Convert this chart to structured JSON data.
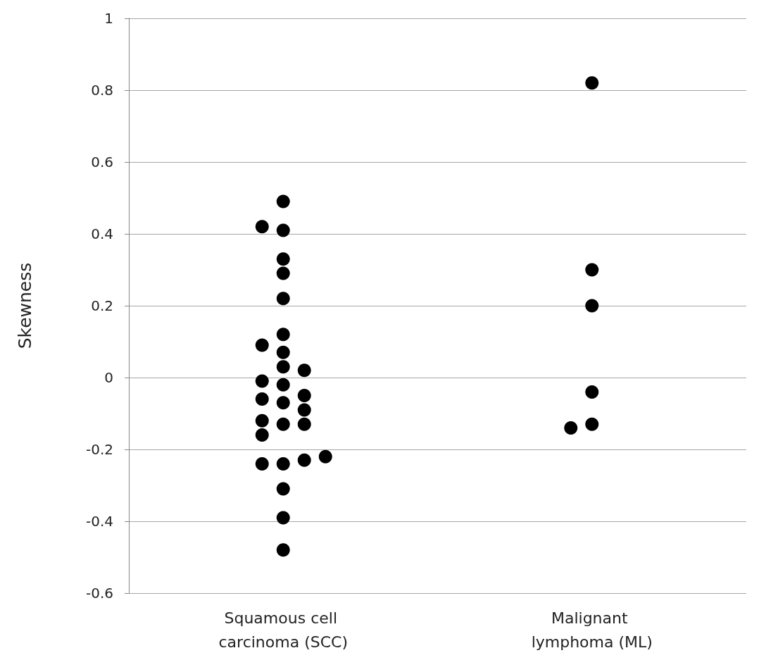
{
  "chart_data": {
    "type": "scatter",
    "ylabel": "Skewness",
    "categories": [
      "Squamous cell carcinoma (SCC)",
      "Malignant lymphoma (ML)"
    ],
    "ylim": [
      -0.6,
      1
    ],
    "yticks": [
      -0.6,
      -0.4,
      -0.2,
      0,
      0.2,
      0.4,
      0.6,
      0.8,
      1
    ],
    "grid": "y",
    "marker": "circle",
    "series": [
      {
        "color": "#000000",
        "x": [
          "Squamous cell carcinoma (SCC)",
          "Squamous cell carcinoma (SCC)",
          "Squamous cell carcinoma (SCC)",
          "Squamous cell carcinoma (SCC)",
          "Squamous cell carcinoma (SCC)",
          "Squamous cell carcinoma (SCC)",
          "Squamous cell carcinoma (SCC)",
          "Squamous cell carcinoma (SCC)",
          "Squamous cell carcinoma (SCC)",
          "Squamous cell carcinoma (SCC)",
          "Squamous cell carcinoma (SCC)",
          "Squamous cell carcinoma (SCC)",
          "Squamous cell carcinoma (SCC)",
          "Squamous cell carcinoma (SCC)",
          "Squamous cell carcinoma (SCC)",
          "Squamous cell carcinoma (SCC)",
          "Squamous cell carcinoma (SCC)",
          "Squamous cell carcinoma (SCC)",
          "Squamous cell carcinoma (SCC)",
          "Squamous cell carcinoma (SCC)",
          "Squamous cell carcinoma (SCC)",
          "Squamous cell carcinoma (SCC)",
          "Squamous cell carcinoma (SCC)",
          "Squamous cell carcinoma (SCC)",
          "Squamous cell carcinoma (SCC)",
          "Squamous cell carcinoma (SCC)",
          "Squamous cell carcinoma (SCC)",
          "Squamous cell carcinoma (SCC)",
          "Malignant lymphoma (ML)",
          "Malignant lymphoma (ML)",
          "Malignant lymphoma (ML)",
          "Malignant lymphoma (ML)",
          "Malignant lymphoma (ML)",
          "Malignant lymphoma (ML)"
        ],
        "values": [
          0.49,
          0.41,
          0.33,
          0.29,
          0.22,
          0.07,
          0.03,
          -0.02,
          -0.07,
          -0.13,
          -0.16,
          -0.24,
          -0.31,
          -0.39,
          -0.48,
          0.42,
          0.09,
          -0.01,
          -0.06,
          -0.13,
          -0.24,
          0.12,
          0.02,
          -0.05,
          -0.12,
          -0.23,
          -0.09,
          -0.22,
          0.82,
          0.3,
          0.2,
          -0.04,
          -0.13,
          -0.14
        ]
      }
    ]
  }
}
